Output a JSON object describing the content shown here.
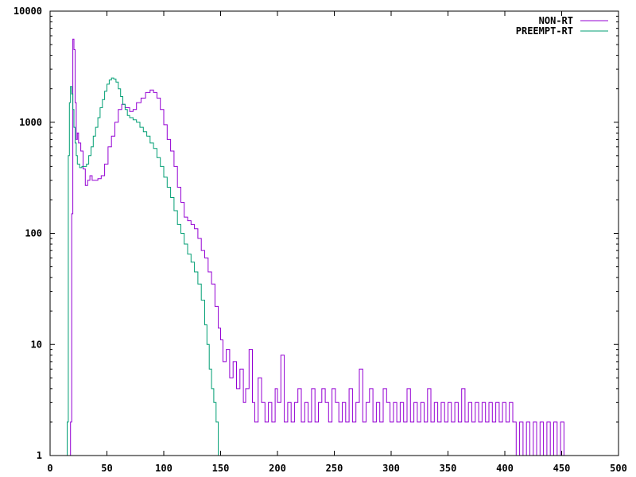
{
  "chart_data": {
    "type": "line",
    "title": "",
    "xlabel": "",
    "ylabel": "",
    "xlim": [
      0,
      500
    ],
    "ylim": [
      1,
      10000
    ],
    "y_scale": "log",
    "grid": false,
    "legend_position": "top-right",
    "x_ticks": [
      "0",
      "50",
      "100",
      "150",
      "200",
      "250",
      "300",
      "350",
      "400",
      "450",
      "500"
    ],
    "y_ticks": [
      "1",
      "10",
      "100",
      "1000",
      "10000"
    ],
    "series": [
      {
        "name": "NON-RT",
        "color": "#9400d3",
        "style": "steps",
        "points": [
          [
            17,
            1
          ],
          [
            18,
            2
          ],
          [
            19,
            150
          ],
          [
            20,
            5600
          ],
          [
            21,
            4500
          ],
          [
            22,
            1500
          ],
          [
            23,
            700
          ],
          [
            24,
            800
          ],
          [
            25,
            650
          ],
          [
            27,
            550
          ],
          [
            29,
            380
          ],
          [
            31,
            270
          ],
          [
            33,
            300
          ],
          [
            35,
            330
          ],
          [
            37,
            300
          ],
          [
            39,
            300
          ],
          [
            42,
            310
          ],
          [
            45,
            330
          ],
          [
            48,
            420
          ],
          [
            51,
            600
          ],
          [
            54,
            750
          ],
          [
            57,
            1000
          ],
          [
            60,
            1300
          ],
          [
            63,
            1450
          ],
          [
            66,
            1350
          ],
          [
            70,
            1250
          ],
          [
            73,
            1300
          ],
          [
            76,
            1500
          ],
          [
            80,
            1650
          ],
          [
            84,
            1850
          ],
          [
            88,
            1950
          ],
          [
            91,
            1850
          ],
          [
            94,
            1650
          ],
          [
            97,
            1300
          ],
          [
            100,
            950
          ],
          [
            103,
            700
          ],
          [
            106,
            550
          ],
          [
            109,
            400
          ],
          [
            112,
            260
          ],
          [
            115,
            190
          ],
          [
            118,
            140
          ],
          [
            121,
            130
          ],
          [
            124,
            120
          ],
          [
            127,
            110
          ],
          [
            130,
            90
          ],
          [
            133,
            70
          ],
          [
            136,
            60
          ],
          [
            139,
            45
          ],
          [
            142,
            35
          ],
          [
            145,
            22
          ],
          [
            148,
            14
          ],
          [
            150,
            11
          ],
          [
            152,
            7
          ],
          [
            155,
            9
          ],
          [
            158,
            5
          ],
          [
            161,
            7
          ],
          [
            164,
            4
          ],
          [
            167,
            6
          ],
          [
            170,
            3
          ],
          [
            172,
            4
          ],
          [
            175,
            9
          ],
          [
            178,
            3
          ],
          [
            180,
            2
          ],
          [
            183,
            5
          ],
          [
            186,
            3
          ],
          [
            189,
            2
          ],
          [
            192,
            3
          ],
          [
            195,
            2
          ],
          [
            198,
            4
          ],
          [
            200,
            3
          ],
          [
            203,
            8
          ],
          [
            206,
            2
          ],
          [
            209,
            3
          ],
          [
            212,
            2
          ],
          [
            215,
            3
          ],
          [
            218,
            4
          ],
          [
            221,
            2
          ],
          [
            224,
            3
          ],
          [
            227,
            2
          ],
          [
            230,
            4
          ],
          [
            233,
            2
          ],
          [
            236,
            3
          ],
          [
            239,
            4
          ],
          [
            242,
            3
          ],
          [
            245,
            2
          ],
          [
            248,
            4
          ],
          [
            251,
            3
          ],
          [
            254,
            2
          ],
          [
            257,
            3
          ],
          [
            260,
            2
          ],
          [
            263,
            4
          ],
          [
            266,
            2
          ],
          [
            269,
            3
          ],
          [
            272,
            6
          ],
          [
            275,
            2
          ],
          [
            278,
            3
          ],
          [
            281,
            4
          ],
          [
            284,
            2
          ],
          [
            287,
            3
          ],
          [
            290,
            2
          ],
          [
            293,
            4
          ],
          [
            296,
            3
          ],
          [
            299,
            2
          ],
          [
            302,
            3
          ],
          [
            305,
            2
          ],
          [
            308,
            3
          ],
          [
            311,
            2
          ],
          [
            314,
            4
          ],
          [
            317,
            2
          ],
          [
            320,
            3
          ],
          [
            323,
            2
          ],
          [
            326,
            3
          ],
          [
            329,
            2
          ],
          [
            332,
            4
          ],
          [
            335,
            2
          ],
          [
            338,
            3
          ],
          [
            341,
            2
          ],
          [
            344,
            3
          ],
          [
            347,
            2
          ],
          [
            350,
            3
          ],
          [
            353,
            2
          ],
          [
            356,
            3
          ],
          [
            359,
            2
          ],
          [
            362,
            4
          ],
          [
            365,
            2
          ],
          [
            368,
            3
          ],
          [
            371,
            2
          ],
          [
            374,
            3
          ],
          [
            377,
            2
          ],
          [
            380,
            3
          ],
          [
            383,
            2
          ],
          [
            386,
            3
          ],
          [
            389,
            2
          ],
          [
            392,
            3
          ],
          [
            395,
            2
          ],
          [
            398,
            3
          ],
          [
            401,
            2
          ],
          [
            404,
            3
          ],
          [
            407,
            2
          ],
          [
            410,
            1
          ],
          [
            413,
            2
          ],
          [
            416,
            1
          ],
          [
            419,
            2
          ],
          [
            422,
            1
          ],
          [
            425,
            2
          ],
          [
            428,
            1
          ],
          [
            431,
            2
          ],
          [
            434,
            1
          ],
          [
            437,
            2
          ],
          [
            440,
            1
          ],
          [
            443,
            2
          ],
          [
            446,
            1
          ],
          [
            449,
            2
          ],
          [
            452,
            1
          ],
          [
            456,
            1
          ],
          [
            460,
            1
          ],
          [
            465,
            1
          ],
          [
            470,
            1
          ],
          [
            475,
            1
          ],
          [
            480,
            1
          ],
          [
            485,
            1
          ],
          [
            490,
            1
          ],
          [
            495,
            1
          ],
          [
            500,
            1
          ]
        ]
      },
      {
        "name": "PREEMPT-RT",
        "color": "#009e73",
        "style": "steps",
        "points": [
          [
            14,
            1
          ],
          [
            15,
            2
          ],
          [
            16,
            500
          ],
          [
            17,
            1500
          ],
          [
            18,
            2100
          ],
          [
            19,
            1800
          ],
          [
            20,
            1300
          ],
          [
            21,
            900
          ],
          [
            22,
            650
          ],
          [
            23,
            500
          ],
          [
            24,
            420
          ],
          [
            26,
            390
          ],
          [
            28,
            400
          ],
          [
            30,
            400
          ],
          [
            32,
            420
          ],
          [
            34,
            500
          ],
          [
            36,
            600
          ],
          [
            38,
            750
          ],
          [
            40,
            900
          ],
          [
            42,
            1100
          ],
          [
            44,
            1350
          ],
          [
            46,
            1600
          ],
          [
            48,
            1900
          ],
          [
            50,
            2200
          ],
          [
            52,
            2400
          ],
          [
            54,
            2500
          ],
          [
            56,
            2450
          ],
          [
            58,
            2300
          ],
          [
            60,
            2000
          ],
          [
            62,
            1700
          ],
          [
            64,
            1450
          ],
          [
            66,
            1300
          ],
          [
            68,
            1150
          ],
          [
            70,
            1100
          ],
          [
            73,
            1050
          ],
          [
            76,
            1000
          ],
          [
            79,
            900
          ],
          [
            82,
            820
          ],
          [
            85,
            750
          ],
          [
            88,
            650
          ],
          [
            91,
            580
          ],
          [
            94,
            480
          ],
          [
            97,
            400
          ],
          [
            100,
            320
          ],
          [
            103,
            260
          ],
          [
            106,
            210
          ],
          [
            109,
            160
          ],
          [
            112,
            120
          ],
          [
            115,
            100
          ],
          [
            118,
            80
          ],
          [
            121,
            65
          ],
          [
            124,
            55
          ],
          [
            127,
            45
          ],
          [
            130,
            35
          ],
          [
            133,
            25
          ],
          [
            136,
            15
          ],
          [
            138,
            10
          ],
          [
            140,
            6
          ],
          [
            142,
            4
          ],
          [
            144,
            3
          ],
          [
            146,
            2
          ],
          [
            148,
            1
          ],
          [
            150,
            1
          ]
        ]
      }
    ]
  }
}
